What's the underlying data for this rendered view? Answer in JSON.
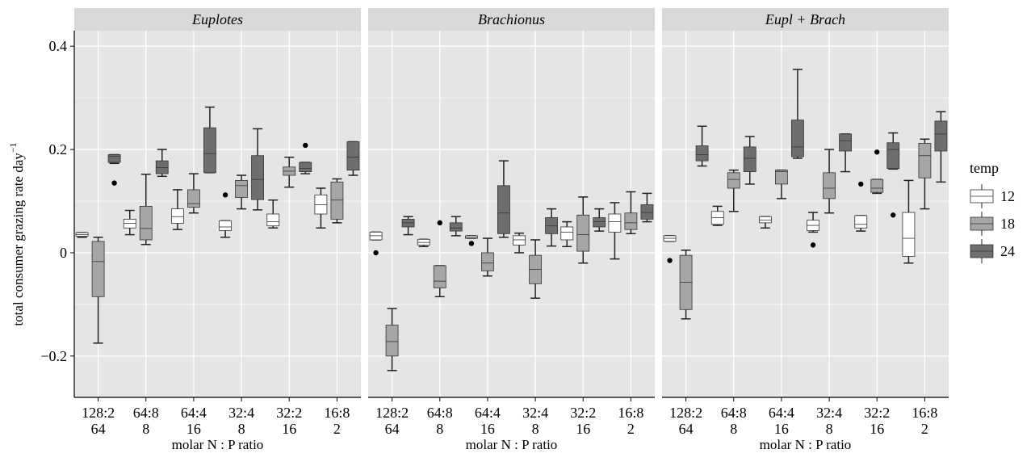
{
  "chart_data": {
    "type": "boxplot",
    "facets": [
      "Euplotes",
      "Brachionus",
      "Eupl + Brach"
    ],
    "categories": [
      {
        "line1": "128:2",
        "line2": "64"
      },
      {
        "line1": "64:8",
        "line2": "8"
      },
      {
        "line1": "64:4",
        "line2": "16"
      },
      {
        "line1": "32:4",
        "line2": "8"
      },
      {
        "line1": "32:2",
        "line2": "16"
      },
      {
        "line1": "16:8",
        "line2": "2"
      }
    ],
    "xlabel": "molar N : P ratio",
    "ylabel": "total consumer grazing rate day",
    "ylabel_sup": "−1",
    "ylim": [
      -0.28,
      0.43
    ],
    "yticks": [
      0.4,
      0.2,
      0,
      -0.2
    ],
    "ytick_labels": [
      "0.4",
      "0.2",
      "0",
      "−0.2"
    ],
    "legend": {
      "title": "temp",
      "entries": [
        {
          "label": "12",
          "color": "#ffffff"
        },
        {
          "label": "18",
          "color": "#a6a6a6"
        },
        {
          "label": "24",
          "color": "#6e6e6e"
        }
      ]
    },
    "panel_background": "#e5e5e5",
    "grid_color": "#ffffff",
    "series": [
      {
        "facet": "Euplotes",
        "boxes": [
          {
            "cat": 0,
            "temp": "12",
            "min": 0.03,
            "q1": 0.032,
            "med": 0.035,
            "q3": 0.039,
            "max": 0.039,
            "outliers": []
          },
          {
            "cat": 0,
            "temp": "18",
            "min": -0.175,
            "q1": -0.085,
            "med": -0.017,
            "q3": 0.022,
            "max": 0.03,
            "outliers": []
          },
          {
            "cat": 0,
            "temp": "24",
            "min": 0.173,
            "q1": 0.175,
            "med": 0.187,
            "q3": 0.19,
            "max": 0.19,
            "outliers": [
              0.135
            ]
          },
          {
            "cat": 1,
            "temp": "12",
            "min": 0.035,
            "q1": 0.048,
            "med": 0.057,
            "q3": 0.065,
            "max": 0.082,
            "outliers": []
          },
          {
            "cat": 1,
            "temp": "18",
            "min": 0.016,
            "q1": 0.025,
            "med": 0.047,
            "q3": 0.09,
            "max": 0.152,
            "outliers": []
          },
          {
            "cat": 1,
            "temp": "24",
            "min": 0.148,
            "q1": 0.153,
            "med": 0.165,
            "q3": 0.178,
            "max": 0.2,
            "outliers": []
          },
          {
            "cat": 2,
            "temp": "12",
            "min": 0.045,
            "q1": 0.057,
            "med": 0.07,
            "q3": 0.085,
            "max": 0.122,
            "outliers": []
          },
          {
            "cat": 2,
            "temp": "18",
            "min": 0.077,
            "q1": 0.088,
            "med": 0.095,
            "q3": 0.122,
            "max": 0.153,
            "outliers": []
          },
          {
            "cat": 2,
            "temp": "24",
            "min": 0.155,
            "q1": 0.155,
            "med": 0.192,
            "q3": 0.242,
            "max": 0.282,
            "outliers": []
          },
          {
            "cat": 3,
            "temp": "12",
            "min": 0.03,
            "q1": 0.043,
            "med": 0.05,
            "q3": 0.062,
            "max": 0.062,
            "outliers": [
              0.112
            ]
          },
          {
            "cat": 3,
            "temp": "18",
            "min": 0.085,
            "q1": 0.107,
            "med": 0.13,
            "q3": 0.14,
            "max": 0.15,
            "outliers": []
          },
          {
            "cat": 3,
            "temp": "24",
            "min": 0.083,
            "q1": 0.103,
            "med": 0.142,
            "q3": 0.188,
            "max": 0.24,
            "outliers": []
          },
          {
            "cat": 4,
            "temp": "12",
            "min": 0.048,
            "q1": 0.052,
            "med": 0.06,
            "q3": 0.075,
            "max": 0.102,
            "outliers": []
          },
          {
            "cat": 4,
            "temp": "18",
            "min": 0.127,
            "q1": 0.15,
            "med": 0.158,
            "q3": 0.166,
            "max": 0.185,
            "outliers": []
          },
          {
            "cat": 4,
            "temp": "24",
            "min": 0.153,
            "q1": 0.157,
            "med": 0.163,
            "q3": 0.175,
            "max": 0.175,
            "outliers": [
              0.208
            ]
          },
          {
            "cat": 5,
            "temp": "12",
            "min": 0.048,
            "q1": 0.075,
            "med": 0.093,
            "q3": 0.112,
            "max": 0.125,
            "outliers": []
          },
          {
            "cat": 5,
            "temp": "18",
            "min": 0.058,
            "q1": 0.065,
            "med": 0.102,
            "q3": 0.137,
            "max": 0.143,
            "outliers": []
          },
          {
            "cat": 5,
            "temp": "24",
            "min": 0.15,
            "q1": 0.16,
            "med": 0.185,
            "q3": 0.215,
            "max": 0.215,
            "outliers": []
          }
        ]
      },
      {
        "facet": "Brachionus",
        "boxes": [
          {
            "cat": 0,
            "temp": "12",
            "min": 0.025,
            "q1": 0.025,
            "med": 0.033,
            "q3": 0.04,
            "max": 0.04,
            "outliers": [
              0.0
            ]
          },
          {
            "cat": 0,
            "temp": "18",
            "min": -0.228,
            "q1": -0.2,
            "med": -0.172,
            "q3": -0.14,
            "max": -0.108,
            "outliers": []
          },
          {
            "cat": 0,
            "temp": "24",
            "min": 0.035,
            "q1": 0.05,
            "med": 0.058,
            "q3": 0.065,
            "max": 0.07,
            "outliers": []
          },
          {
            "cat": 1,
            "temp": "12",
            "min": 0.012,
            "q1": 0.015,
            "med": 0.02,
            "q3": 0.026,
            "max": 0.026,
            "outliers": []
          },
          {
            "cat": 1,
            "temp": "18",
            "min": -0.085,
            "q1": -0.068,
            "med": -0.055,
            "q3": -0.025,
            "max": -0.025,
            "outliers": [
              0.058
            ]
          },
          {
            "cat": 1,
            "temp": "24",
            "min": 0.033,
            "q1": 0.042,
            "med": 0.048,
            "q3": 0.058,
            "max": 0.07,
            "outliers": []
          },
          {
            "cat": 2,
            "temp": "12",
            "min": 0.028,
            "q1": 0.028,
            "med": 0.03,
            "q3": 0.033,
            "max": 0.033,
            "outliers": [
              0.018
            ]
          },
          {
            "cat": 2,
            "temp": "18",
            "min": -0.045,
            "q1": -0.035,
            "med": -0.02,
            "q3": 0.0,
            "max": 0.028,
            "outliers": []
          },
          {
            "cat": 2,
            "temp": "24",
            "min": 0.03,
            "q1": 0.037,
            "med": 0.077,
            "q3": 0.13,
            "max": 0.178,
            "outliers": []
          },
          {
            "cat": 3,
            "temp": "12",
            "min": 0.0,
            "q1": 0.015,
            "med": 0.025,
            "q3": 0.033,
            "max": 0.038,
            "outliers": []
          },
          {
            "cat": 3,
            "temp": "18",
            "min": -0.088,
            "q1": -0.06,
            "med": -0.032,
            "q3": -0.005,
            "max": 0.025,
            "outliers": []
          },
          {
            "cat": 3,
            "temp": "24",
            "min": 0.013,
            "q1": 0.037,
            "med": 0.052,
            "q3": 0.068,
            "max": 0.085,
            "outliers": []
          },
          {
            "cat": 4,
            "temp": "12",
            "min": 0.012,
            "q1": 0.025,
            "med": 0.04,
            "q3": 0.05,
            "max": 0.06,
            "outliers": []
          },
          {
            "cat": 4,
            "temp": "18",
            "min": -0.02,
            "q1": 0.003,
            "med": 0.035,
            "q3": 0.073,
            "max": 0.108,
            "outliers": []
          },
          {
            "cat": 4,
            "temp": "24",
            "min": 0.042,
            "q1": 0.05,
            "med": 0.06,
            "q3": 0.068,
            "max": 0.085,
            "outliers": []
          },
          {
            "cat": 5,
            "temp": "12",
            "min": -0.012,
            "q1": 0.04,
            "med": 0.06,
            "q3": 0.075,
            "max": 0.097,
            "outliers": []
          },
          {
            "cat": 5,
            "temp": "18",
            "min": 0.037,
            "q1": 0.045,
            "med": 0.058,
            "q3": 0.077,
            "max": 0.118,
            "outliers": []
          },
          {
            "cat": 5,
            "temp": "24",
            "min": 0.06,
            "q1": 0.065,
            "med": 0.078,
            "q3": 0.093,
            "max": 0.115,
            "outliers": []
          }
        ]
      },
      {
        "facet": "Eupl + Brach",
        "boxes": [
          {
            "cat": 0,
            "temp": "12",
            "min": 0.022,
            "q1": 0.022,
            "med": 0.028,
            "q3": 0.033,
            "max": 0.033,
            "outliers": [
              -0.015
            ]
          },
          {
            "cat": 0,
            "temp": "18",
            "min": -0.128,
            "q1": -0.11,
            "med": -0.057,
            "q3": -0.005,
            "max": 0.005,
            "outliers": []
          },
          {
            "cat": 0,
            "temp": "24",
            "min": 0.168,
            "q1": 0.178,
            "med": 0.19,
            "q3": 0.207,
            "max": 0.245,
            "outliers": []
          },
          {
            "cat": 1,
            "temp": "12",
            "min": 0.053,
            "q1": 0.055,
            "med": 0.068,
            "q3": 0.08,
            "max": 0.09,
            "outliers": []
          },
          {
            "cat": 1,
            "temp": "18",
            "min": 0.08,
            "q1": 0.125,
            "med": 0.142,
            "q3": 0.155,
            "max": 0.16,
            "outliers": []
          },
          {
            "cat": 1,
            "temp": "24",
            "min": 0.133,
            "q1": 0.157,
            "med": 0.183,
            "q3": 0.205,
            "max": 0.225,
            "outliers": []
          },
          {
            "cat": 2,
            "temp": "12",
            "min": 0.048,
            "q1": 0.058,
            "med": 0.063,
            "q3": 0.07,
            "max": 0.07,
            "outliers": []
          },
          {
            "cat": 2,
            "temp": "18",
            "min": 0.105,
            "q1": 0.133,
            "med": 0.157,
            "q3": 0.16,
            "max": 0.16,
            "outliers": []
          },
          {
            "cat": 2,
            "temp": "24",
            "min": 0.183,
            "q1": 0.186,
            "med": 0.205,
            "q3": 0.257,
            "max": 0.355,
            "outliers": []
          },
          {
            "cat": 3,
            "temp": "12",
            "min": 0.04,
            "q1": 0.043,
            "med": 0.053,
            "q3": 0.063,
            "max": 0.078,
            "outliers": [
              0.015
            ]
          },
          {
            "cat": 3,
            "temp": "18",
            "min": 0.077,
            "q1": 0.105,
            "med": 0.125,
            "q3": 0.155,
            "max": 0.2,
            "outliers": []
          },
          {
            "cat": 3,
            "temp": "24",
            "min": 0.157,
            "q1": 0.197,
            "med": 0.217,
            "q3": 0.23,
            "max": 0.23,
            "outliers": []
          },
          {
            "cat": 4,
            "temp": "12",
            "min": 0.042,
            "q1": 0.048,
            "med": 0.055,
            "q3": 0.072,
            "max": 0.072,
            "outliers": [
              0.133
            ]
          },
          {
            "cat": 4,
            "temp": "18",
            "min": 0.115,
            "q1": 0.117,
            "med": 0.125,
            "q3": 0.142,
            "max": 0.142,
            "outliers": [
              0.195
            ]
          },
          {
            "cat": 4,
            "temp": "24",
            "min": 0.162,
            "q1": 0.163,
            "med": 0.2,
            "q3": 0.213,
            "max": 0.232,
            "outliers": [
              0.073
            ]
          },
          {
            "cat": 5,
            "temp": "12",
            "min": -0.02,
            "q1": -0.007,
            "med": 0.028,
            "q3": 0.078,
            "max": 0.14,
            "outliers": []
          },
          {
            "cat": 5,
            "temp": "18",
            "min": 0.085,
            "q1": 0.145,
            "med": 0.188,
            "q3": 0.212,
            "max": 0.22,
            "outliers": []
          },
          {
            "cat": 5,
            "temp": "24",
            "min": 0.137,
            "q1": 0.197,
            "med": 0.23,
            "q3": 0.255,
            "max": 0.273,
            "outliers": []
          }
        ]
      }
    ]
  }
}
